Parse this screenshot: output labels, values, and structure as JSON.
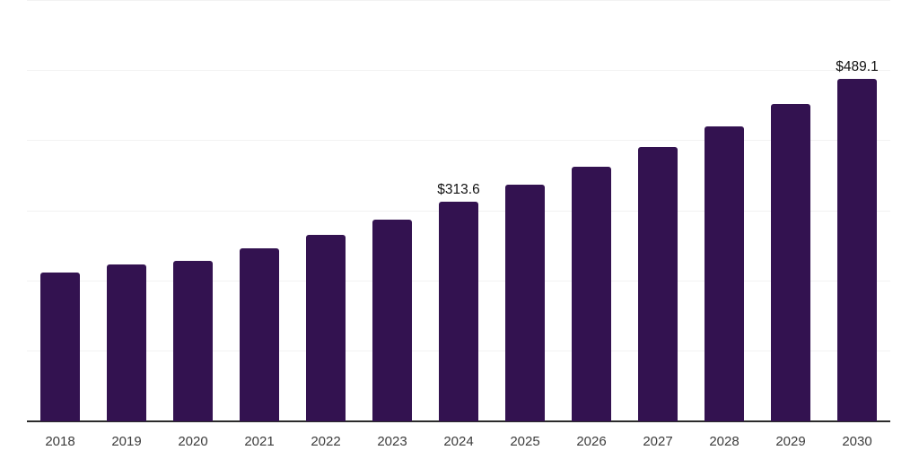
{
  "chart_data": {
    "type": "bar",
    "categories": [
      "2018",
      "2019",
      "2020",
      "2021",
      "2022",
      "2023",
      "2024",
      "2025",
      "2026",
      "2027",
      "2028",
      "2029",
      "2030"
    ],
    "values": [
      212.4,
      223.5,
      229.3,
      246.5,
      265.5,
      287.5,
      313.6,
      337.5,
      363.5,
      391.5,
      421.5,
      452.5,
      489.1
    ],
    "value_labels": [
      "",
      "",
      "",
      "",
      "",
      "",
      "$313.6",
      "",
      "",
      "",
      "",
      "",
      "$489.1"
    ],
    "title": "",
    "xlabel": "",
    "ylabel": "",
    "ylim": [
      0,
      600
    ],
    "gridline_step": 100,
    "grid": true,
    "legend": "none",
    "y_axis_labels_visible": false,
    "colors": {
      "bar": "#331250",
      "grid": "#f2f2f2",
      "axis_line": "#2b2b2b",
      "value_label": "#111111",
      "tick_label": "#3c3c3c",
      "background": "#ffffff"
    }
  }
}
